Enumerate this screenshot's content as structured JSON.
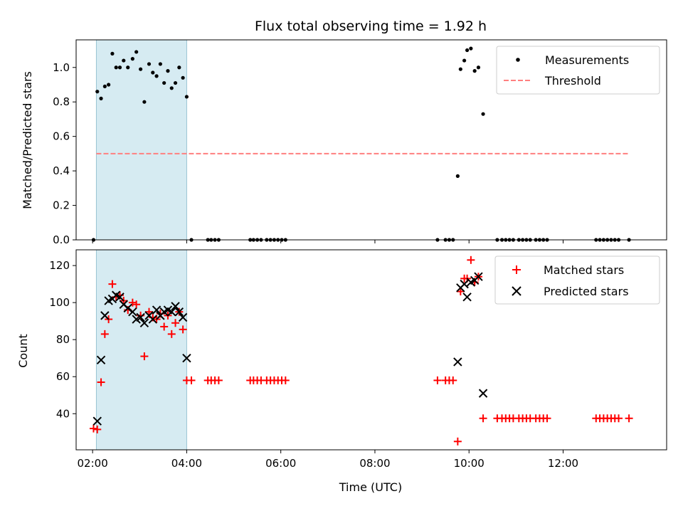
{
  "chart_data": [
    {
      "type": "scatter",
      "title": "Flux total observing time = 1.92 h",
      "xlabel": "",
      "ylabel": "Matched/Predicted stars",
      "xlim": [
        1.65,
        14.2
      ],
      "ylim": [
        0,
        1.16
      ],
      "yticks": [
        0.0,
        0.2,
        0.4,
        0.6,
        0.8,
        1.0
      ],
      "ytick_labels": [
        "0.0",
        "0.2",
        "0.4",
        "0.6",
        "0.8",
        "1.0"
      ],
      "shaded_span": [
        2.08,
        4.0
      ],
      "legend": [
        "Measurements",
        "Threshold"
      ],
      "threshold": {
        "name": "Threshold",
        "value": 0.5,
        "x_range": [
          2.08,
          13.4
        ],
        "color": "#ff7f7f"
      },
      "series": [
        {
          "name": "Measurements",
          "color": "#000000",
          "points": [
            [
              2.02,
              0.0
            ],
            [
              2.1,
              0.86
            ],
            [
              2.18,
              0.82
            ],
            [
              2.26,
              0.89
            ],
            [
              2.34,
              0.9
            ],
            [
              2.42,
              1.08
            ],
            [
              2.5,
              1.0
            ],
            [
              2.58,
              1.0
            ],
            [
              2.66,
              1.04
            ],
            [
              2.75,
              1.0
            ],
            [
              2.85,
              1.05
            ],
            [
              2.93,
              1.09
            ],
            [
              3.02,
              0.99
            ],
            [
              3.1,
              0.8
            ],
            [
              3.2,
              1.02
            ],
            [
              3.28,
              0.97
            ],
            [
              3.36,
              0.95
            ],
            [
              3.44,
              1.02
            ],
            [
              3.52,
              0.91
            ],
            [
              3.6,
              0.98
            ],
            [
              3.68,
              0.88
            ],
            [
              3.76,
              0.91
            ],
            [
              3.84,
              1.0
            ],
            [
              3.92,
              0.94
            ],
            [
              4.0,
              0.83
            ],
            [
              4.1,
              0.0
            ],
            [
              4.45,
              0.0
            ],
            [
              4.52,
              0.0
            ],
            [
              4.6,
              0.0
            ],
            [
              4.68,
              0.0
            ],
            [
              5.35,
              0.0
            ],
            [
              5.42,
              0.0
            ],
            [
              5.5,
              0.0
            ],
            [
              5.58,
              0.0
            ],
            [
              5.7,
              0.0
            ],
            [
              5.78,
              0.0
            ],
            [
              5.86,
              0.0
            ],
            [
              5.94,
              0.0
            ],
            [
              6.02,
              0.0
            ],
            [
              6.1,
              0.0
            ],
            [
              9.33,
              0.0
            ],
            [
              9.5,
              0.0
            ],
            [
              9.58,
              0.0
            ],
            [
              9.66,
              0.0
            ],
            [
              9.76,
              0.37
            ],
            [
              9.82,
              0.99
            ],
            [
              9.9,
              1.04
            ],
            [
              9.96,
              1.1
            ],
            [
              10.04,
              1.11
            ],
            [
              10.12,
              0.98
            ],
            [
              10.2,
              1.0
            ],
            [
              10.3,
              0.73
            ],
            [
              10.6,
              0.0
            ],
            [
              10.7,
              0.0
            ],
            [
              10.78,
              0.0
            ],
            [
              10.86,
              0.0
            ],
            [
              10.94,
              0.0
            ],
            [
              11.06,
              0.0
            ],
            [
              11.14,
              0.0
            ],
            [
              11.22,
              0.0
            ],
            [
              11.3,
              0.0
            ],
            [
              11.42,
              0.0
            ],
            [
              11.5,
              0.0
            ],
            [
              11.58,
              0.0
            ],
            [
              11.66,
              0.0
            ],
            [
              12.7,
              0.0
            ],
            [
              12.78,
              0.0
            ],
            [
              12.86,
              0.0
            ],
            [
              12.94,
              0.0
            ],
            [
              13.02,
              0.0
            ],
            [
              13.1,
              0.0
            ],
            [
              13.18,
              0.0
            ],
            [
              13.4,
              0.0
            ]
          ]
        }
      ]
    },
    {
      "type": "scatter",
      "title": "",
      "xlabel": "Time (UTC)",
      "ylabel": "Count",
      "xlim": [
        1.65,
        14.2
      ],
      "ylim": [
        20.5,
        128.5
      ],
      "yticks": [
        40,
        60,
        80,
        100,
        120
      ],
      "ytick_labels": [
        "40",
        "60",
        "80",
        "100",
        "120"
      ],
      "xticks": [
        2,
        4,
        6,
        8,
        10,
        12
      ],
      "xtick_labels": [
        "02:00",
        "04:00",
        "06:00",
        "08:00",
        "10:00",
        "12:00"
      ],
      "shaded_span": [
        2.08,
        4.0
      ],
      "legend": [
        "Matched stars",
        "Predicted stars"
      ],
      "series": [
        {
          "name": "Matched stars",
          "color": "#ff0000",
          "points": [
            [
              2.02,
              32
            ],
            [
              2.1,
              31.5
            ],
            [
              2.18,
              57
            ],
            [
              2.26,
              83
            ],
            [
              2.34,
              91
            ],
            [
              2.42,
              110
            ],
            [
              2.5,
              103
            ],
            [
              2.58,
              104
            ],
            [
              2.66,
              101
            ],
            [
              2.75,
              96
            ],
            [
              2.85,
              100
            ],
            [
              2.93,
              99
            ],
            [
              3.02,
              93
            ],
            [
              3.1,
              71
            ],
            [
              3.2,
              95
            ],
            [
              3.28,
              92
            ],
            [
              3.36,
              91
            ],
            [
              3.44,
              94
            ],
            [
              3.52,
              87
            ],
            [
              3.6,
              93
            ],
            [
              3.68,
              83
            ],
            [
              3.76,
              89
            ],
            [
              3.84,
              95
            ],
            [
              3.92,
              85.5
            ],
            [
              4.0,
              58
            ],
            [
              4.1,
              58
            ],
            [
              4.45,
              58
            ],
            [
              4.52,
              58
            ],
            [
              4.6,
              58
            ],
            [
              4.68,
              58
            ],
            [
              5.35,
              58
            ],
            [
              5.42,
              58
            ],
            [
              5.5,
              58
            ],
            [
              5.58,
              58
            ],
            [
              5.7,
              58
            ],
            [
              5.78,
              58
            ],
            [
              5.86,
              58
            ],
            [
              5.94,
              58
            ],
            [
              6.02,
              58
            ],
            [
              6.1,
              58
            ],
            [
              9.33,
              58
            ],
            [
              9.5,
              58
            ],
            [
              9.58,
              58
            ],
            [
              9.66,
              58
            ],
            [
              9.76,
              25
            ],
            [
              9.82,
              106
            ],
            [
              9.9,
              113
            ],
            [
              9.96,
              113
            ],
            [
              10.04,
              123
            ],
            [
              10.12,
              111
            ],
            [
              10.2,
              114
            ],
            [
              10.3,
              37.5
            ],
            [
              10.6,
              37.5
            ],
            [
              10.7,
              37.5
            ],
            [
              10.78,
              37.5
            ],
            [
              10.86,
              37.5
            ],
            [
              10.94,
              37.5
            ],
            [
              11.06,
              37.5
            ],
            [
              11.14,
              37.5
            ],
            [
              11.22,
              37.5
            ],
            [
              11.3,
              37.5
            ],
            [
              11.42,
              37.5
            ],
            [
              11.5,
              37.5
            ],
            [
              11.58,
              37.5
            ],
            [
              11.66,
              37.5
            ],
            [
              12.7,
              37.5
            ],
            [
              12.78,
              37.5
            ],
            [
              12.86,
              37.5
            ],
            [
              12.94,
              37.5
            ],
            [
              13.02,
              37.5
            ],
            [
              13.1,
              37.5
            ],
            [
              13.18,
              37.5
            ],
            [
              13.4,
              37.5
            ]
          ]
        },
        {
          "name": "Predicted stars",
          "color": "#000000",
          "points": [
            [
              2.1,
              36
            ],
            [
              2.18,
              69
            ],
            [
              2.26,
              93
            ],
            [
              2.34,
              101
            ],
            [
              2.42,
              102
            ],
            [
              2.5,
              104
            ],
            [
              2.58,
              103
            ],
            [
              2.66,
              99
            ],
            [
              2.75,
              97
            ],
            [
              2.85,
              95
            ],
            [
              2.93,
              91
            ],
            [
              3.02,
              92
            ],
            [
              3.1,
              89
            ],
            [
              3.2,
              93
            ],
            [
              3.28,
              91
            ],
            [
              3.36,
              96
            ],
            [
              3.44,
              93
            ],
            [
              3.52,
              95
            ],
            [
              3.6,
              96
            ],
            [
              3.68,
              95
            ],
            [
              3.76,
              98
            ],
            [
              3.84,
              95
            ],
            [
              3.92,
              92
            ],
            [
              4.0,
              70
            ],
            [
              9.76,
              68
            ],
            [
              9.82,
              108
            ],
            [
              9.9,
              110
            ],
            [
              9.96,
              103
            ],
            [
              10.04,
              111
            ],
            [
              10.12,
              112
            ],
            [
              10.2,
              114
            ],
            [
              10.3,
              51
            ]
          ]
        }
      ]
    }
  ]
}
